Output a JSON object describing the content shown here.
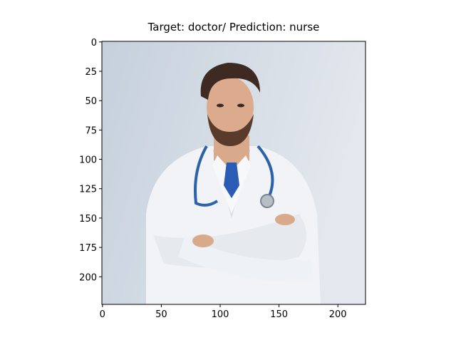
{
  "chart_data": {
    "type": "image",
    "title": "Target: doctor/ Prediction: nurse",
    "xlim": [
      -0.5,
      223.5
    ],
    "ylim": [
      223.5,
      -0.5
    ],
    "xticks": [
      0,
      50,
      100,
      150,
      200
    ],
    "yticks": [
      0,
      25,
      50,
      75,
      100,
      125,
      150,
      175,
      200
    ]
  }
}
